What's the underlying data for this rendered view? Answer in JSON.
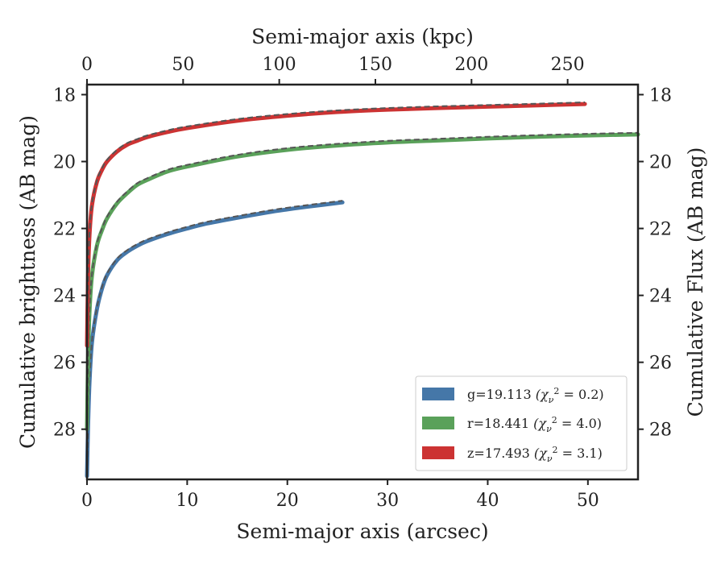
{
  "chart_data": {
    "type": "line",
    "title": "",
    "xlabel": "Semi-major axis (arcsec)",
    "ylabel": "Cumulative brightness (AB mag)",
    "x2label": "Semi-major axis (kpc)",
    "y2label": "Cumulative Flux (AB mag)",
    "xlim": [
      0,
      55
    ],
    "ylim": [
      29.5,
      17.7
    ],
    "x2lim": [
      0,
      286.6
    ],
    "y_inverted": true,
    "xticks": [
      "0",
      "10",
      "20",
      "30",
      "40",
      "50"
    ],
    "yticks": [
      "18",
      "20",
      "22",
      "24",
      "26",
      "28"
    ],
    "x2ticks": [
      "0",
      "50",
      "100",
      "150",
      "200",
      "250"
    ],
    "y2ticks": [
      "18",
      "20",
      "22",
      "24",
      "26",
      "28"
    ],
    "grid": false,
    "legend_position": "lower-right",
    "series": [
      {
        "name": "g",
        "legend": "g=19.113",
        "chi2": "0.2",
        "color": "#4577a8",
        "x": [
          0.0,
          0.1,
          0.25,
          0.5,
          1,
          1.5,
          2,
          3,
          4,
          5,
          6,
          8,
          10,
          12,
          15,
          18,
          20,
          22,
          25.5
        ],
        "y": [
          29.4,
          28.0,
          26.6,
          25.4,
          24.4,
          23.8,
          23.4,
          22.95,
          22.7,
          22.52,
          22.38,
          22.17,
          22.0,
          21.85,
          21.68,
          21.52,
          21.43,
          21.35,
          21.22
        ]
      },
      {
        "name": "r",
        "legend": "r=18.441",
        "chi2": "4.0",
        "color": "#5aa15a",
        "x": [
          0.0,
          0.1,
          0.25,
          0.5,
          1,
          1.5,
          2,
          3,
          4,
          5,
          6,
          8,
          10,
          15,
          20,
          25,
          30,
          35,
          40,
          45,
          50,
          55
        ],
        "y": [
          28.0,
          26.0,
          24.5,
          23.4,
          22.5,
          22.05,
          21.7,
          21.25,
          20.95,
          20.7,
          20.55,
          20.3,
          20.15,
          19.85,
          19.65,
          19.52,
          19.43,
          19.37,
          19.31,
          19.26,
          19.22,
          19.19
        ]
      },
      {
        "name": "z",
        "legend": "z=17.493",
        "chi2": "3.1",
        "color": "#cc3333",
        "x": [
          0.0,
          0.1,
          0.25,
          0.5,
          1,
          1.5,
          2,
          3,
          4,
          5,
          6,
          8,
          10,
          15,
          20,
          25,
          30,
          35,
          40,
          45,
          49.7
        ],
        "y": [
          25.5,
          23.5,
          22.2,
          21.3,
          20.6,
          20.25,
          20.0,
          19.7,
          19.5,
          19.38,
          19.27,
          19.12,
          19.0,
          18.78,
          18.63,
          18.52,
          18.45,
          18.4,
          18.36,
          18.32,
          18.28
        ]
      }
    ]
  }
}
